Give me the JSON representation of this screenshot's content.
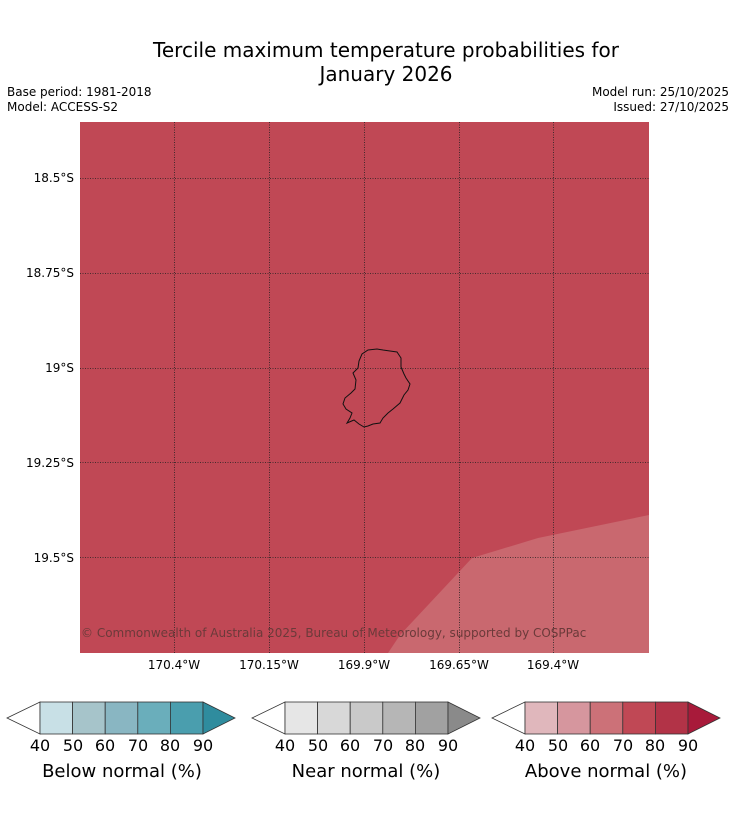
{
  "title_line1": "Tercile maximum temperature probabilities for",
  "title_line2": "January 2026",
  "meta_left": {
    "base_period": "Base period: 1981-2018",
    "model": "Model: ACCESS-S2"
  },
  "meta_right": {
    "model_run": "Model run: 25/10/2025",
    "issued": "Issued: 27/10/2025"
  },
  "map": {
    "lat_labels": [
      "18.5°S",
      "18.75°S",
      "19°S",
      "19.25°S",
      "19.5°S"
    ],
    "lon_labels": [
      "170.4°W",
      "170.15°W",
      "169.9°W",
      "169.65°W",
      "169.4°W"
    ],
    "fill_main_color": "#c04855",
    "fill_lower_color": "#c9686f",
    "main_category": "Above normal, 70–80%",
    "lower_right_category": "Above normal, 60–70%",
    "copyright": "© Commonwealth of Australia 2025, Bureau of Meteorology, supported by COSPPac"
  },
  "colorbars": [
    {
      "label": "Below normal (%)",
      "ticks": [
        "40",
        "50",
        "60",
        "70",
        "80",
        "90"
      ],
      "colors": [
        "#c8e0e6",
        "#a6c4ca",
        "#89b6c2",
        "#6aaebb",
        "#4a9eae",
        "#2f8c9e"
      ]
    },
    {
      "label": "Near normal (%)",
      "ticks": [
        "40",
        "50",
        "60",
        "70",
        "80",
        "90"
      ],
      "colors": [
        "#e6e6e6",
        "#d8d8d8",
        "#c9c9c9",
        "#b6b6b6",
        "#a1a1a1",
        "#8a8a8a"
      ]
    },
    {
      "label": "Above normal (%)",
      "ticks": [
        "40",
        "50",
        "60",
        "70",
        "80",
        "90"
      ],
      "colors": [
        "#e0b7bc",
        "#d6969e",
        "#cc7178",
        "#c04855",
        "#b23347",
        "#a81a3a"
      ]
    }
  ]
}
